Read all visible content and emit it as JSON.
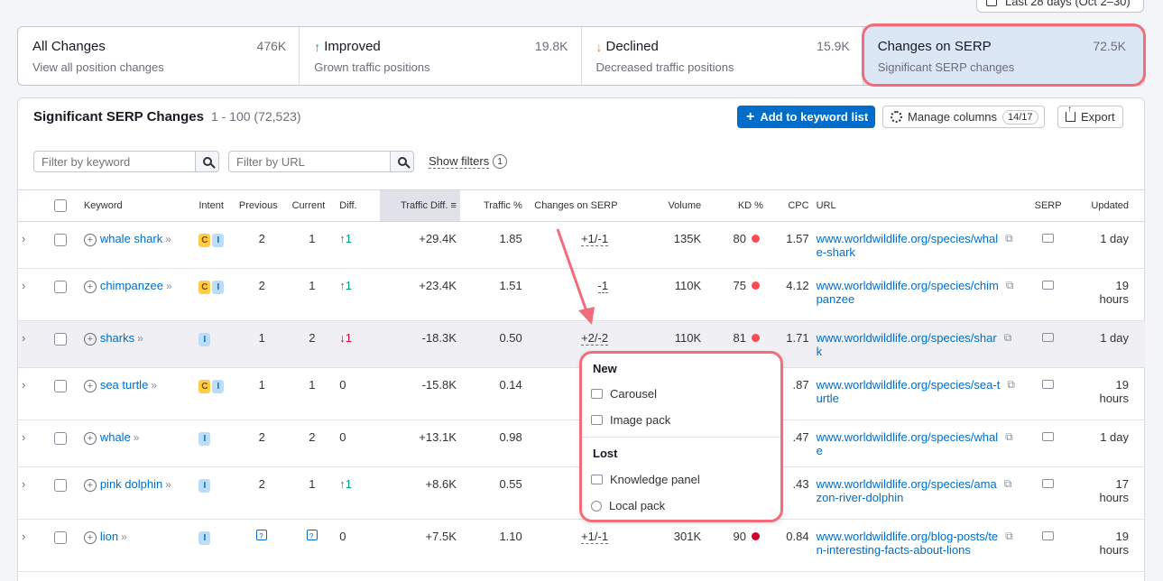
{
  "date_button": {
    "label": "Last 28 days (Oct 2–30)"
  },
  "cards": [
    {
      "title": "All Changes",
      "count": "476K",
      "sub": "View all position changes",
      "icon": ""
    },
    {
      "title": "Improved",
      "count": "19.8K",
      "sub": "Grown traffic positions",
      "icon": "arrow-up-icon"
    },
    {
      "title": "Declined",
      "count": "15.9K",
      "sub": "Decreased traffic positions",
      "icon": "arrow-down-icon"
    },
    {
      "title": "Changes on SERP",
      "count": "72.5K",
      "sub": "Significant SERP changes",
      "icon": ""
    }
  ],
  "panel": {
    "title": "Significant SERP Changes",
    "range": "1 - 100 (72,523)",
    "add_label": "Add to keyword list",
    "columns_label": "Manage columns",
    "columns_count": "14/17",
    "export_label": "Export"
  },
  "filters": {
    "keyword_placeholder": "Filter by keyword",
    "url_placeholder": "Filter by URL",
    "show_filters": "Show filters",
    "show_filters_count": "1"
  },
  "columns": [
    "Keyword",
    "Intent",
    "Previous",
    "Current",
    "Diff.",
    "Traffic Diff.",
    "Traffic %",
    "Changes on SERP",
    "Volume",
    "KD %",
    "CPC",
    "URL",
    "SERP",
    "Updated"
  ],
  "rows": [
    {
      "keyword": "whale shark",
      "intents": [
        "C",
        "I"
      ],
      "previous": "2",
      "current": "1",
      "diff": "1",
      "diff_dir": "up",
      "traffic_diff": "+29.4K",
      "traffic_pct": "1.85",
      "serp_changes": "+1/-1",
      "volume": "135K",
      "kd": "80",
      "cpc": "1.57",
      "url1": "www.worldwildlife.org/species/whal",
      "url2": "e-shark",
      "updated1": "1 day",
      "updated2": ""
    },
    {
      "keyword": "chimpanzee",
      "intents": [
        "C",
        "I"
      ],
      "previous": "2",
      "current": "1",
      "diff": "1",
      "diff_dir": "up",
      "traffic_diff": "+23.4K",
      "traffic_pct": "1.51",
      "serp_changes": "-1",
      "volume": "110K",
      "kd": "75",
      "cpc": "4.12",
      "url1": "www.worldwildlife.org/species/chim",
      "url2": "panzee",
      "updated1": "19",
      "updated2": "hours"
    },
    {
      "keyword": "sharks",
      "intents": [
        "I"
      ],
      "previous": "1",
      "current": "2",
      "diff": "1",
      "diff_dir": "down",
      "traffic_diff": "-18.3K",
      "traffic_pct": "0.50",
      "serp_changes": "+2/-2",
      "volume": "110K",
      "kd": "81",
      "cpc": "1.71",
      "url1": "www.worldwildlife.org/species/shar",
      "url2": "k",
      "updated1": "1 day",
      "updated2": ""
    },
    {
      "keyword": "sea turtle",
      "intents": [
        "C",
        "I"
      ],
      "previous": "1",
      "current": "1",
      "diff": "0",
      "diff_dir": "none",
      "traffic_diff": "-15.8K",
      "traffic_pct": "0.14",
      "serp_changes": "",
      "volume": "",
      "kd": "",
      "cpc": ".87",
      "url1": "www.worldwildlife.org/species/sea-t",
      "url2": "urtle",
      "updated1": "19",
      "updated2": "hours"
    },
    {
      "keyword": "whale",
      "intents": [
        "I"
      ],
      "previous": "2",
      "current": "2",
      "diff": "0",
      "diff_dir": "none",
      "traffic_diff": "+13.1K",
      "traffic_pct": "0.98",
      "serp_changes": "",
      "volume": "",
      "kd": "",
      "cpc": ".47",
      "url1": "www.worldwildlife.org/species/whal",
      "url2": "e",
      "updated1": "1 day",
      "updated2": ""
    },
    {
      "keyword": "pink dolphin",
      "intents": [
        "I"
      ],
      "previous": "2",
      "current": "1",
      "diff": "1",
      "diff_dir": "up",
      "traffic_diff": "+8.6K",
      "traffic_pct": "0.55",
      "serp_changes": "",
      "volume": "",
      "kd": "",
      "cpc": ".43",
      "url1": "www.worldwildlife.org/species/ama",
      "url2": "zon-river-dolphin",
      "updated1": "17",
      "updated2": "hours"
    },
    {
      "keyword": "lion",
      "intents": [
        "I"
      ],
      "previous": "",
      "current": "",
      "diff": "0",
      "diff_dir": "none",
      "traffic_diff": "+7.5K",
      "traffic_pct": "1.10",
      "serp_changes": "+1/-1",
      "volume": "301K",
      "kd": "90",
      "cpc": "0.84",
      "url1": "www.worldwildlife.org/blog-posts/te",
      "url2": "n-interesting-facts-about-lions",
      "updated1": "19",
      "updated2": "hours"
    }
  ],
  "popup": {
    "new_label": "New",
    "new_items": [
      "Carousel",
      "Image pack"
    ],
    "lost_label": "Lost",
    "lost_items": [
      "Knowledge panel",
      "Local pack"
    ]
  },
  "colors": {
    "accent": "#006dca",
    "highlight": "#f26d79",
    "up": "#009f81",
    "down": "#d1002f"
  }
}
